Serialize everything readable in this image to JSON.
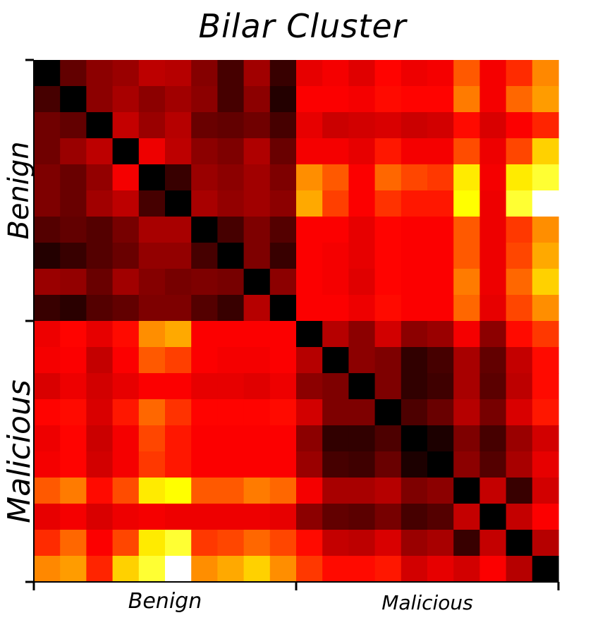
{
  "chart_data": {
    "type": "heatmap",
    "title": "Bilar Cluster",
    "xlabel": "",
    "ylabel": "",
    "x_groups": [
      "Benign",
      "Malicious"
    ],
    "y_groups": [
      "Benign",
      "Malicious"
    ],
    "group_size": 10,
    "colormap": "hot",
    "value_range": [
      0,
      1
    ],
    "values": [
      [
        0.0,
        0.14,
        0.2,
        0.22,
        0.27,
        0.26,
        0.19,
        0.1,
        0.23,
        0.08,
        0.33,
        0.35,
        0.32,
        0.37,
        0.34,
        0.35,
        0.5,
        0.35,
        0.43,
        0.57
      ],
      [
        0.1,
        0.0,
        0.2,
        0.24,
        0.2,
        0.23,
        0.2,
        0.1,
        0.2,
        0.05,
        0.36,
        0.36,
        0.35,
        0.38,
        0.37,
        0.37,
        0.55,
        0.35,
        0.52,
        0.6
      ],
      [
        0.16,
        0.14,
        0.0,
        0.28,
        0.22,
        0.26,
        0.15,
        0.14,
        0.16,
        0.1,
        0.33,
        0.29,
        0.3,
        0.31,
        0.29,
        0.3,
        0.38,
        0.31,
        0.36,
        0.42
      ],
      [
        0.16,
        0.22,
        0.27,
        0.0,
        0.34,
        0.27,
        0.2,
        0.18,
        0.25,
        0.15,
        0.35,
        0.35,
        0.33,
        0.4,
        0.35,
        0.35,
        0.48,
        0.34,
        0.47,
        0.68
      ],
      [
        0.18,
        0.15,
        0.21,
        0.35,
        0.0,
        0.08,
        0.22,
        0.2,
        0.23,
        0.18,
        0.58,
        0.5,
        0.36,
        0.52,
        0.47,
        0.45,
        0.72,
        0.35,
        0.72,
        0.8
      ],
      [
        0.18,
        0.15,
        0.23,
        0.27,
        0.1,
        0.0,
        0.24,
        0.21,
        0.23,
        0.2,
        0.62,
        0.46,
        0.36,
        0.44,
        0.4,
        0.4,
        0.75,
        0.34,
        0.8,
        1.0
      ],
      [
        0.12,
        0.14,
        0.12,
        0.17,
        0.24,
        0.24,
        0.0,
        0.1,
        0.18,
        0.12,
        0.36,
        0.36,
        0.33,
        0.37,
        0.36,
        0.36,
        0.5,
        0.34,
        0.45,
        0.58
      ],
      [
        0.05,
        0.08,
        0.12,
        0.15,
        0.21,
        0.21,
        0.1,
        0.0,
        0.18,
        0.08,
        0.36,
        0.35,
        0.33,
        0.37,
        0.36,
        0.36,
        0.5,
        0.34,
        0.47,
        0.62
      ],
      [
        0.22,
        0.21,
        0.15,
        0.23,
        0.19,
        0.17,
        0.18,
        0.17,
        0.0,
        0.2,
        0.36,
        0.35,
        0.32,
        0.37,
        0.36,
        0.36,
        0.55,
        0.34,
        0.52,
        0.68
      ],
      [
        0.08,
        0.06,
        0.12,
        0.14,
        0.18,
        0.18,
        0.12,
        0.08,
        0.26,
        0.0,
        0.36,
        0.36,
        0.34,
        0.38,
        0.36,
        0.36,
        0.52,
        0.33,
        0.47,
        0.58
      ],
      [
        0.34,
        0.37,
        0.33,
        0.38,
        0.58,
        0.62,
        0.36,
        0.36,
        0.36,
        0.36,
        0.0,
        0.26,
        0.2,
        0.3,
        0.2,
        0.22,
        0.35,
        0.2,
        0.38,
        0.45
      ],
      [
        0.35,
        0.36,
        0.28,
        0.36,
        0.5,
        0.46,
        0.36,
        0.35,
        0.35,
        0.36,
        0.26,
        0.0,
        0.2,
        0.18,
        0.07,
        0.1,
        0.24,
        0.14,
        0.28,
        0.38
      ],
      [
        0.31,
        0.34,
        0.3,
        0.33,
        0.36,
        0.36,
        0.33,
        0.33,
        0.32,
        0.34,
        0.2,
        0.18,
        0.0,
        0.18,
        0.07,
        0.09,
        0.24,
        0.13,
        0.27,
        0.38
      ],
      [
        0.37,
        0.38,
        0.31,
        0.4,
        0.52,
        0.44,
        0.37,
        0.37,
        0.37,
        0.38,
        0.3,
        0.18,
        0.18,
        0.0,
        0.11,
        0.15,
        0.26,
        0.17,
        0.31,
        0.4
      ],
      [
        0.34,
        0.37,
        0.29,
        0.35,
        0.47,
        0.4,
        0.36,
        0.36,
        0.36,
        0.36,
        0.2,
        0.07,
        0.07,
        0.11,
        0.0,
        0.04,
        0.18,
        0.1,
        0.22,
        0.3
      ],
      [
        0.35,
        0.37,
        0.3,
        0.35,
        0.45,
        0.4,
        0.36,
        0.36,
        0.36,
        0.36,
        0.22,
        0.1,
        0.09,
        0.15,
        0.04,
        0.0,
        0.2,
        0.12,
        0.24,
        0.33
      ],
      [
        0.5,
        0.55,
        0.38,
        0.48,
        0.72,
        0.75,
        0.5,
        0.5,
        0.55,
        0.52,
        0.35,
        0.24,
        0.24,
        0.26,
        0.18,
        0.2,
        0.0,
        0.28,
        0.08,
        0.3
      ],
      [
        0.33,
        0.35,
        0.31,
        0.34,
        0.35,
        0.34,
        0.34,
        0.34,
        0.34,
        0.33,
        0.2,
        0.14,
        0.13,
        0.17,
        0.1,
        0.12,
        0.28,
        0.0,
        0.28,
        0.36
      ],
      [
        0.43,
        0.52,
        0.36,
        0.47,
        0.72,
        0.8,
        0.45,
        0.47,
        0.52,
        0.47,
        0.38,
        0.28,
        0.27,
        0.31,
        0.22,
        0.24,
        0.08,
        0.28,
        0.0,
        0.26
      ],
      [
        0.57,
        0.6,
        0.42,
        0.68,
        0.8,
        1.0,
        0.58,
        0.62,
        0.68,
        0.58,
        0.45,
        0.38,
        0.38,
        0.4,
        0.3,
        0.33,
        0.3,
        0.36,
        0.26,
        0.0
      ]
    ]
  }
}
